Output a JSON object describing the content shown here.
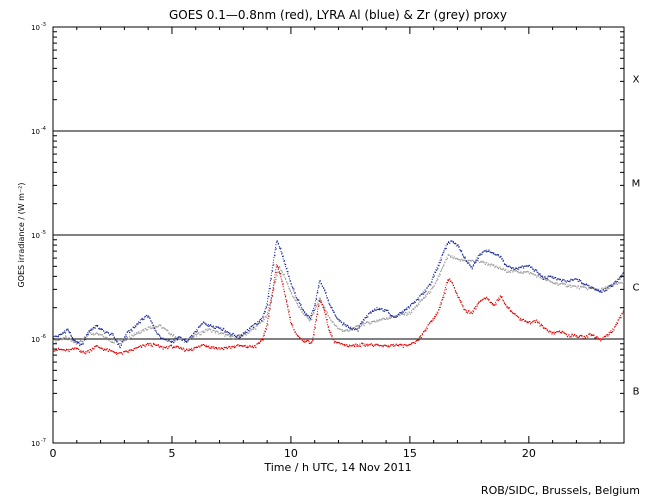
{
  "chart_data": {
    "type": "line",
    "title": "GOES 0.1—0.8nm (red), LYRA Al (blue) & Zr (grey) proxy",
    "xlabel": "Time / h UTC, 14 Nov 2011",
    "ylabel": "GOES irradiance / (W m⁻²)",
    "credit": "ROB/SIDC, Brussels, Belgium",
    "xlim": [
      0,
      24
    ],
    "ylim": [
      1e-07,
      0.001
    ],
    "yscale": "log",
    "x_ticks": [
      0,
      5,
      10,
      15,
      20
    ],
    "x_tick_labels": [
      "0",
      "5",
      "10",
      "15",
      "20"
    ],
    "y_ticks": [
      {
        "mantissa": "10",
        "exponent": "-7"
      },
      {
        "mantissa": "10",
        "exponent": "-6"
      },
      {
        "mantissa": "10",
        "exponent": "-5"
      },
      {
        "mantissa": "10",
        "exponent": "-4"
      },
      {
        "mantissa": "10",
        "exponent": "-3"
      }
    ],
    "flare_classes": [
      {
        "label": "B",
        "value": 3.2e-07
      },
      {
        "label": "C",
        "value": 3.2e-06
      },
      {
        "label": "M",
        "value": 3.2e-05
      },
      {
        "label": "X",
        "value": 0.00032
      }
    ],
    "class_lines": [
      1e-06,
      1e-05,
      0.0001
    ],
    "series": [
      {
        "color": "#e00000",
        "x": [
          0,
          0.3,
          0.6,
          1.0,
          1.3,
          1.5,
          1.8,
          2.1,
          2.5,
          2.8,
          3.0,
          3.3,
          3.6,
          4.0,
          4.3,
          4.6,
          5.0,
          5.3,
          5.6,
          6.0,
          6.3,
          6.6,
          7.0,
          7.4,
          7.8,
          8.1,
          8.5,
          8.8,
          9.0,
          9.2,
          9.4,
          9.55,
          9.7,
          9.85,
          10.0,
          10.3,
          10.6,
          10.9,
          11.0,
          11.2,
          11.4,
          11.6,
          11.8,
          12.0,
          12.3,
          12.6,
          13.0,
          13.3,
          13.6,
          14.0,
          14.3,
          14.6,
          15.0,
          15.3,
          15.6,
          15.8,
          16.0,
          16.2,
          16.4,
          16.6,
          16.8,
          17.0,
          17.3,
          17.6,
          17.9,
          18.2,
          18.5,
          18.8,
          19.0,
          19.3,
          19.6,
          20.0,
          20.3,
          20.6,
          21.0,
          21.3,
          21.6,
          22.0,
          22.3,
          22.6,
          23.0,
          23.3,
          23.6,
          23.8,
          24.0
        ],
        "values": [
          8e-07,
          8e-07,
          7.8e-07,
          8.2e-07,
          7.4e-07,
          7.8e-07,
          8.6e-07,
          8.1e-07,
          7.6e-07,
          7.3e-07,
          7.5e-07,
          7.9e-07,
          8.4e-07,
          9e-07,
          8.8e-07,
          8.3e-07,
          8.6e-07,
          8.2e-07,
          7.9e-07,
          8.3e-07,
          8.9e-07,
          8.5e-07,
          8.2e-07,
          8.4e-07,
          8.7e-07,
          8.5e-07,
          8.6e-07,
          1e-06,
          1.4e-06,
          2.6e-06,
          5.2e-06,
          4.2e-06,
          3e-06,
          2.1e-06,
          1.4e-06,
          1.05e-06,
          9.5e-07,
          9.4e-07,
          1.3e-06,
          2.4e-06,
          1.9e-06,
          1.2e-06,
          9.6e-07,
          9.2e-07,
          8.8e-07,
          8.7e-07,
          9e-07,
          8.9e-07,
          8.7e-07,
          8.6e-07,
          8.9e-07,
          8.7e-07,
          8.8e-07,
          9.6e-07,
          1.2e-06,
          1.4e-06,
          1.6e-06,
          1.9e-06,
          2.6e-06,
          3.8e-06,
          3.4e-06,
          2.6e-06,
          1.9e-06,
          1.8e-06,
          2.3e-06,
          2.5e-06,
          2.1e-06,
          2.6e-06,
          2.2e-06,
          1.8e-06,
          1.6e-06,
          1.45e-06,
          1.5e-06,
          1.3e-06,
          1.15e-06,
          1.2e-06,
          1.1e-06,
          1.08e-06,
          1.05e-06,
          1.12e-06,
          1e-06,
          1.1e-06,
          1.3e-06,
          1.6e-06,
          1.9e-06
        ]
      },
      {
        "color": "#1a2a9c",
        "x": [
          0,
          0.3,
          0.6,
          0.9,
          1.2,
          1.5,
          1.8,
          2.1,
          2.5,
          2.8,
          3.1,
          3.4,
          3.7,
          4.0,
          4.3,
          4.6,
          5.0,
          5.3,
          5.6,
          6.0,
          6.3,
          6.6,
          7.0,
          7.4,
          7.8,
          8.1,
          8.5,
          8.8,
          9.0,
          9.2,
          9.4,
          9.55,
          9.7,
          9.85,
          10.0,
          10.2,
          10.4,
          10.6,
          10.8,
          11.0,
          11.2,
          11.4,
          11.6,
          11.8,
          12.0,
          12.2,
          12.5,
          12.8,
          13.0,
          13.3,
          13.6,
          14.0,
          14.3,
          14.6,
          15.0,
          15.3,
          15.6,
          15.9,
          16.0,
          16.2,
          16.4,
          16.6,
          16.8,
          17.0,
          17.3,
          17.6,
          17.9,
          18.2,
          18.5,
          18.8,
          19.0,
          19.3,
          19.6,
          20.0,
          20.3,
          20.6,
          21.0,
          21.3,
          21.6,
          22.0,
          22.3,
          22.6,
          23.0,
          23.3,
          23.6,
          23.8,
          24.0
        ],
        "values": [
          1.05e-06,
          1.1e-06,
          1.25e-06,
          9.5e-07,
          8.8e-07,
          1.2e-06,
          1.35e-06,
          1.2e-06,
          1.1e-06,
          8.5e-07,
          1.15e-06,
          1.3e-06,
          1.55e-06,
          1.7e-06,
          1.2e-06,
          1e-06,
          9.5e-07,
          1.05e-06,
          9.4e-07,
          1.2e-06,
          1.45e-06,
          1.35e-06,
          1.3e-06,
          1.15e-06,
          1.05e-06,
          1.2e-06,
          1.4e-06,
          1.6e-06,
          2.2e-06,
          4.5e-06,
          8.8e-06,
          7.4e-06,
          5.6e-06,
          4.4e-06,
          3.4e-06,
          2.6e-06,
          2.1e-06,
          1.8e-06,
          1.6e-06,
          2.1e-06,
          3.6e-06,
          3e-06,
          2.2e-06,
          1.8e-06,
          1.5e-06,
          1.4e-06,
          1.3e-06,
          1.25e-06,
          1.5e-06,
          1.8e-06,
          2e-06,
          1.9e-06,
          1.6e-06,
          1.8e-06,
          2.1e-06,
          2.4e-06,
          2.9e-06,
          3.5e-06,
          4.2e-06,
          5.2e-06,
          6.8e-06,
          8.6e-06,
          8.8e-06,
          8e-06,
          6e-06,
          4.8e-06,
          6.5e-06,
          7.2e-06,
          6.6e-06,
          6.2e-06,
          5.2e-06,
          4.8e-06,
          4.9e-06,
          5.1e-06,
          4.5e-06,
          3.9e-06,
          4e-06,
          3.7e-06,
          3.6e-06,
          3.8e-06,
          3.4e-06,
          3.2e-06,
          2.9e-06,
          3.1e-06,
          3.5e-06,
          3.9e-06,
          4.4e-06
        ]
      },
      {
        "color": "#9a9a9a",
        "x": [
          0,
          0.5,
          1.0,
          1.5,
          2.0,
          2.5,
          3.0,
          3.5,
          4.0,
          4.5,
          5.0,
          5.5,
          6.0,
          6.5,
          7.0,
          7.5,
          8.0,
          8.5,
          9.0,
          9.3,
          9.5,
          9.7,
          10.0,
          10.4,
          10.8,
          11.2,
          11.6,
          12.0,
          12.4,
          13.0,
          14.0,
          15.0,
          16.0,
          16.6,
          17.0,
          18.0,
          19.0,
          20.0,
          21.0,
          22.0,
          23.0,
          24.0
        ],
        "values": [
          9.5e-07,
          1.05e-06,
          9e-07,
          1.15e-06,
          1.1e-06,
          9.5e-07,
          1e-06,
          1.15e-06,
          1.3e-06,
          1.35e-06,
          1.1e-06,
          9.6e-07,
          1.1e-06,
          1.25e-06,
          1.15e-06,
          1.05e-06,
          1.1e-06,
          1.3e-06,
          1.7e-06,
          3.4e-06,
          5e-06,
          4.1e-06,
          2.8e-06,
          1.9e-06,
          1.5e-06,
          2.5e-06,
          1.6e-06,
          1.25e-06,
          1.2e-06,
          1.4e-06,
          1.6e-06,
          1.8e-06,
          3.2e-06,
          6.4e-06,
          5.8e-06,
          5.6e-06,
          4.6e-06,
          4.4e-06,
          3.5e-06,
          3.2e-06,
          3e-06,
          3.6e-06
        ]
      }
    ]
  }
}
